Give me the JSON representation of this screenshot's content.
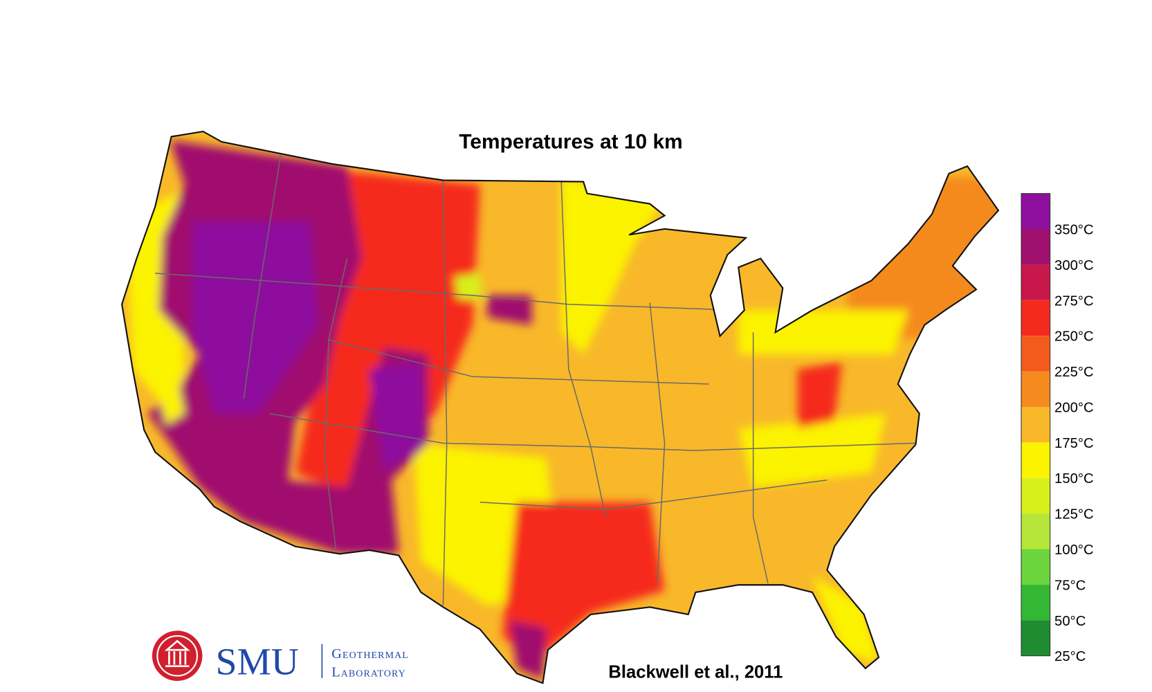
{
  "header": {
    "title": "Temperatures at 10 km"
  },
  "legend": [
    {
      "label": "350°C",
      "color": "#8e0f9e"
    },
    {
      "label": "300°C",
      "color": "#a0106e"
    },
    {
      "label": "275°C",
      "color": "#c8174a"
    },
    {
      "label": "250°C",
      "color": "#f52a1e"
    },
    {
      "label": "225°C",
      "color": "#f45a1c"
    },
    {
      "label": "200°C",
      "color": "#f58a1f"
    },
    {
      "label": "175°C",
      "color": "#f8b82a"
    },
    {
      "label": "150°C",
      "color": "#fbf300"
    },
    {
      "label": "125°C",
      "color": "#d8f01a"
    },
    {
      "label": "100°C",
      "color": "#b6e63a"
    },
    {
      "label": "75°C",
      "color": "#6cd43c"
    },
    {
      "label": "50°C",
      "color": "#34b834"
    },
    {
      "label": "25°C",
      "color": "#1f8c32"
    }
  ],
  "logo": {
    "name": "SMU",
    "line1": "Geothermal",
    "line2": "Laboratory"
  },
  "credit": "Blackwell et al., 2011"
}
